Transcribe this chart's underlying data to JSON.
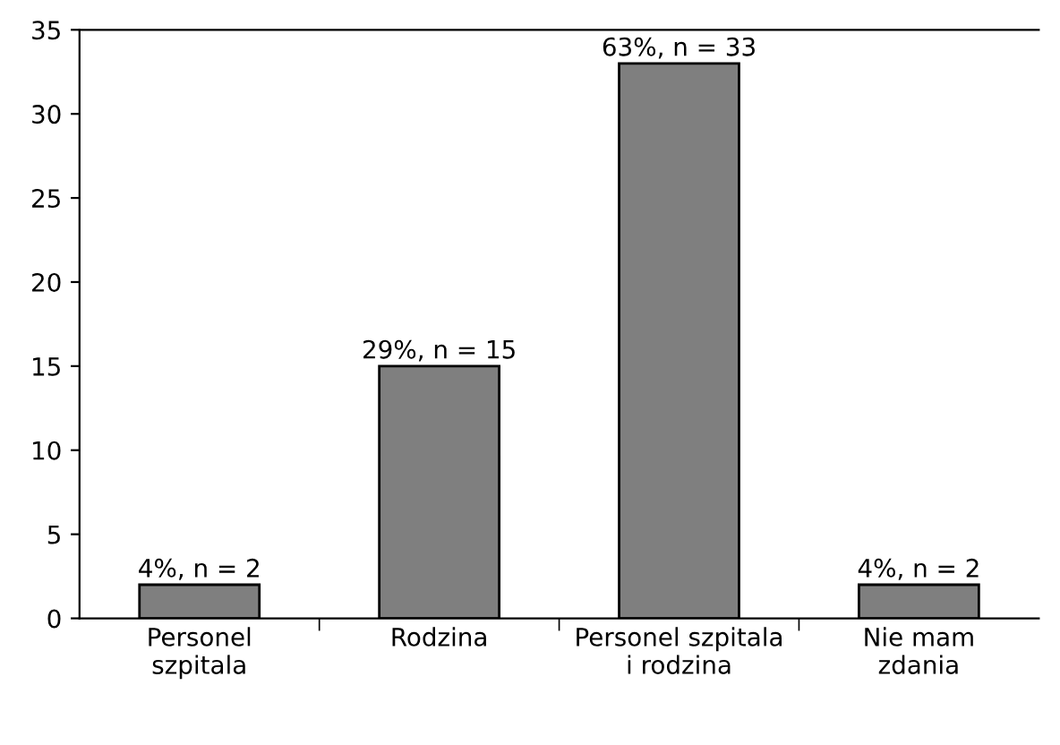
{
  "chart_data": {
    "type": "bar",
    "categories": [
      "Personel\nszpitala",
      "Rodzina",
      "Personel szpitala\ni rodzina",
      "Nie mam\nzdania"
    ],
    "values": [
      2,
      15,
      33,
      2
    ],
    "value_labels": [
      "4%, n = 2",
      "29%, n = 15",
      "63%, n = 33",
      "4%, n = 2"
    ],
    "color": "#7f7f7f",
    "ylim": [
      0,
      35
    ],
    "yticks": [
      0,
      5,
      10,
      15,
      20,
      25,
      30,
      35
    ],
    "grid": false,
    "legend": false
  }
}
